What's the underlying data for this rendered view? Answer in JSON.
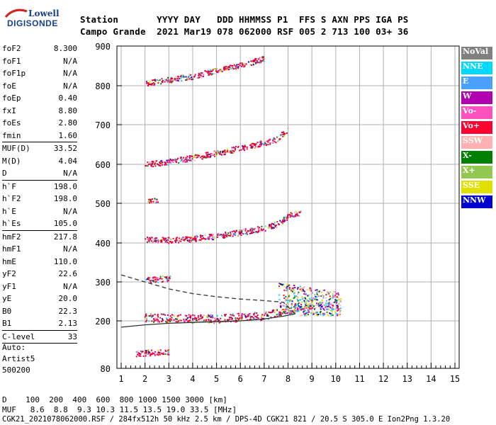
{
  "logo": {
    "line1": "Lowell",
    "line2": "DIGISONDE"
  },
  "header": {
    "line1": "Station       YYYY DAY   DDD HHMMSS P1  FFS S AXN PPS IGA PS",
    "line2": "Campo Grande  2021 Mar19 078 062000 RSF 005 2 713 100 03+ 36"
  },
  "params": [
    {
      "k": "foF2",
      "v": "8.300"
    },
    {
      "k": "foF1",
      "v": "N/A"
    },
    {
      "k": "foF1p",
      "v": "N/A"
    },
    {
      "k": "foE",
      "v": "N/A"
    },
    {
      "k": "foEp",
      "v": "0.40"
    },
    {
      "k": "fxI",
      "v": "8.80"
    },
    {
      "k": "foEs",
      "v": "2.80"
    },
    {
      "k": "fmin",
      "v": "1.60"
    },
    {
      "k": "MUF(D)",
      "v": "33.52",
      "sep": true
    },
    {
      "k": "M(D)",
      "v": "4.04"
    },
    {
      "k": "D",
      "v": "N/A"
    },
    {
      "k": "h`F",
      "v": "198.0",
      "sep": true
    },
    {
      "k": "h`F2",
      "v": "198.0"
    },
    {
      "k": "h`E",
      "v": "N/A"
    },
    {
      "k": "h`Es",
      "v": "105.0"
    },
    {
      "k": "hmF2",
      "v": "217.8",
      "sep": true
    },
    {
      "k": "hmF1",
      "v": "N/A"
    },
    {
      "k": "hmE",
      "v": "110.0"
    },
    {
      "k": "yF2",
      "v": "22.6"
    },
    {
      "k": "yF1",
      "v": "N/A"
    },
    {
      "k": "yE",
      "v": "20.0"
    },
    {
      "k": "B0",
      "v": "22.3"
    },
    {
      "k": "B1",
      "v": "2.13"
    },
    {
      "k": "C-level",
      "v": "33",
      "sep": true
    }
  ],
  "auto": {
    "l1": "Auto:",
    "l2": "Artist5",
    "l3": "500200"
  },
  "legend": [
    {
      "label": "NoVal",
      "color": "#808080"
    },
    {
      "label": "NNE",
      "color": "#00d8ff"
    },
    {
      "label": "E",
      "color": "#4aa0ff"
    },
    {
      "label": "W",
      "color": "#b000b0"
    },
    {
      "label": "Vo-",
      "color": "#ff50c0"
    },
    {
      "label": "Vo+",
      "color": "#ff0030"
    },
    {
      "label": "SSW",
      "color": "#ffb0b0"
    },
    {
      "label": "X-",
      "color": "#008000"
    },
    {
      "label": "X+",
      "color": "#90c850"
    },
    {
      "label": "SSE",
      "color": "#e0e000"
    },
    {
      "label": "NNW",
      "color": "#0000d0"
    }
  ],
  "footer": {
    "line1": "D    100  200  400  600  800 1000 1500 3000 [km]",
    "line2": "MUF   8.6  8.8  9.3 10.3 11.5 13.5 19.0 33.5 [MHz]",
    "line3": "CGK21_2021078062000.RSF / 284fx512h 50 kHz 2.5 km / DPS-4D CGK21 821 / 20.5 S 305.0 E Ion2Png 1.3.20"
  },
  "chart_data": {
    "type": "scatter",
    "title": "",
    "xlabel": "",
    "ylabel": "",
    "xlim": [
      1,
      15
    ],
    "ylim": [
      80,
      900
    ],
    "x_ticks": [
      "1",
      "2",
      "3",
      "4",
      "5",
      "6",
      "7",
      "8",
      "9",
      "10",
      "11",
      "12",
      "13",
      "14",
      "15"
    ],
    "y_ticks": [
      "80",
      "200",
      "300",
      "400",
      "500",
      "600",
      "700",
      "800",
      "900"
    ],
    "y_tick_values": [
      80,
      200,
      300,
      400,
      500,
      600,
      700,
      800,
      900
    ],
    "grid": true,
    "traces": [
      {
        "name": "",
        "points": [
          [
            2.0,
            210
          ],
          [
            3,
            208
          ],
          [
            4,
            207
          ],
          [
            5,
            206
          ],
          [
            6,
            210
          ],
          [
            7,
            214
          ],
          [
            7.5,
            222
          ],
          [
            8,
            230
          ],
          [
            8.5,
            240
          ],
          [
            9,
            248
          ]
        ]
      },
      {
        "name": "",
        "points": [
          [
            2.0,
            410
          ],
          [
            3,
            408
          ],
          [
            4,
            412
          ],
          [
            5,
            418
          ],
          [
            6,
            428
          ],
          [
            7,
            438
          ],
          [
            7.5,
            448
          ],
          [
            8,
            470
          ],
          [
            8.5,
            478
          ]
        ]
      },
      {
        "name": "",
        "points": [
          [
            2.0,
            600
          ],
          [
            3,
            608
          ],
          [
            4,
            618
          ],
          [
            5,
            630
          ],
          [
            6,
            642
          ],
          [
            7,
            655
          ],
          [
            7.5,
            665
          ],
          [
            8,
            690
          ]
        ]
      },
      {
        "name": "",
        "points": [
          [
            2.0,
            808
          ],
          [
            3,
            815
          ],
          [
            4,
            825
          ],
          [
            5,
            840
          ],
          [
            6,
            852
          ],
          [
            7,
            870
          ]
        ]
      },
      {
        "name": "",
        "points": [
          [
            1.6,
            118
          ],
          [
            2,
            120
          ],
          [
            2.5,
            121
          ],
          [
            3,
            122
          ]
        ]
      },
      {
        "name": "",
        "points": [
          [
            2.0,
            305
          ],
          [
            2.5,
            308
          ],
          [
            3,
            310
          ]
        ]
      },
      {
        "name": "",
        "points": [
          [
            2.1,
            505
          ],
          [
            2.5,
            510
          ]
        ]
      }
    ],
    "profile_solid": [
      [
        1.0,
        184
      ],
      [
        2,
        190
      ],
      [
        3,
        194
      ],
      [
        4,
        196
      ],
      [
        5,
        198
      ],
      [
        6,
        200
      ],
      [
        7,
        205
      ],
      [
        7.8,
        212
      ],
      [
        8.3,
        218
      ]
    ],
    "profile_dashed": [
      [
        1.0,
        318
      ],
      [
        2,
        300
      ],
      [
        3,
        282
      ],
      [
        4,
        270
      ],
      [
        5,
        262
      ],
      [
        6,
        256
      ],
      [
        7,
        252
      ],
      [
        7.8,
        248
      ],
      [
        8.3,
        218
      ]
    ]
  }
}
